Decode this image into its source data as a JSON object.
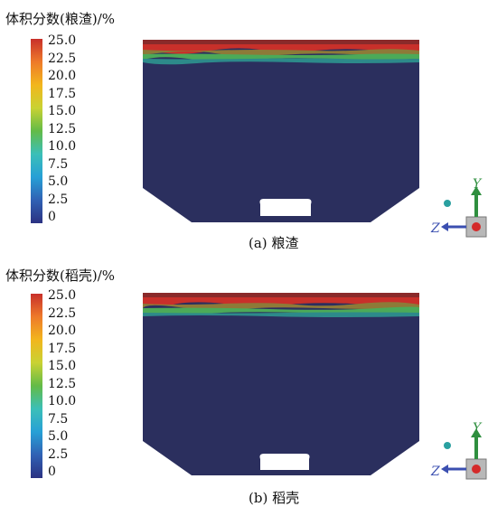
{
  "colormap": {
    "stops": [
      "#2b3282",
      "#3061b4",
      "#27a0d6",
      "#3bbfb8",
      "#63bb47",
      "#c9d233",
      "#f2b61d",
      "#ee7a2a",
      "#c8302a"
    ],
    "ticks": [
      "25.0",
      "22.5",
      "20.0",
      "17.5",
      "15.0",
      "12.5",
      "10.0",
      "7.5",
      "5.0",
      "2.5",
      "0"
    ]
  },
  "panels": [
    {
      "title": "体积分数(粮渣)/%",
      "caption": "(a) 粮渣"
    },
    {
      "title": "体积分数(稻壳)/%",
      "caption": "(b) 稻壳"
    }
  ],
  "triad": {
    "y_label": "Y",
    "z_label": "Z"
  },
  "colors": {
    "domain_fill": "#2b2f5e",
    "y_axis": "#2f8f3f",
    "z_axis": "#3b4fb0",
    "origin": "#d42a2a"
  }
}
